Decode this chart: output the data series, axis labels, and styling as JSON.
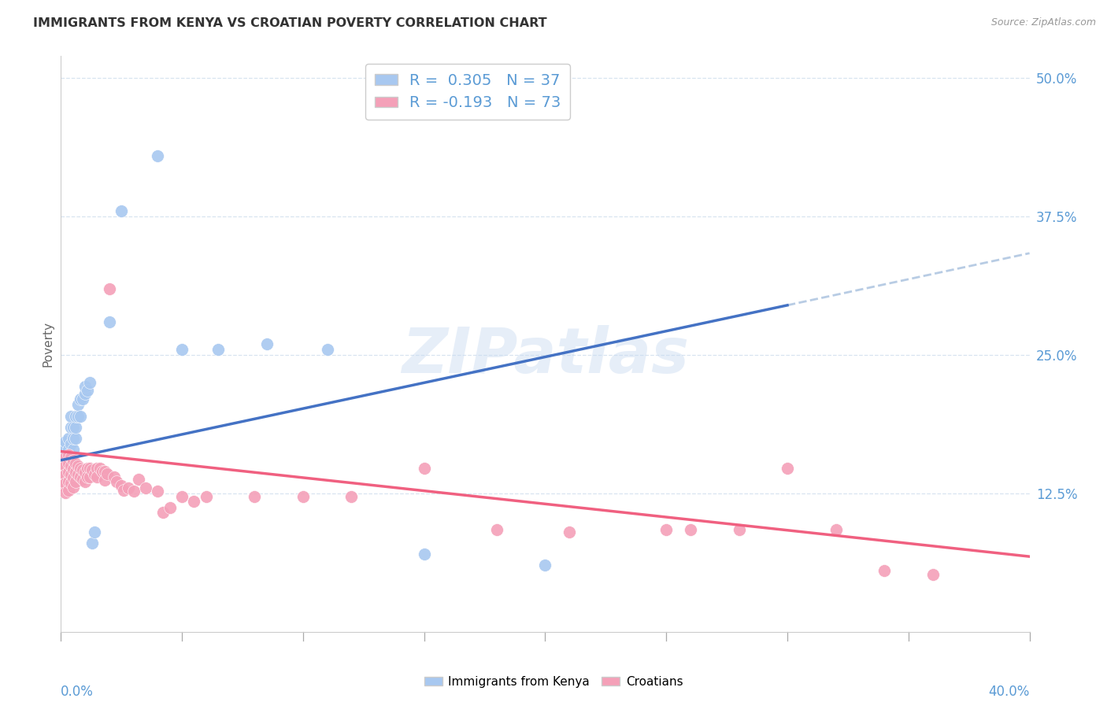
{
  "title": "IMMIGRANTS FROM KENYA VS CROATIAN POVERTY CORRELATION CHART",
  "source": "Source: ZipAtlas.com",
  "ylabel": "Poverty",
  "ytick_values": [
    0.125,
    0.25,
    0.375,
    0.5
  ],
  "xlim": [
    0.0,
    0.4
  ],
  "ylim": [
    0.0,
    0.52
  ],
  "kenya_R": 0.305,
  "kenya_N": 37,
  "croatian_R": -0.193,
  "croatian_N": 73,
  "watermark": "ZIPatlas",
  "background_color": "#ffffff",
  "grid_color": "#d8e4f0",
  "axis_color": "#5b9bd5",
  "kenya_color": "#a8c8f0",
  "croatian_color": "#f4a0b8",
  "trend_kenya_color": "#4472c4",
  "trend_croatian_color": "#f06080",
  "trend_dashed_color": "#b8cce4",
  "kenya_trend_x0": 0.0,
  "kenya_trend_y0": 0.155,
  "kenya_trend_x1": 0.3,
  "kenya_trend_y1": 0.295,
  "kenya_trend_dash_x0": 0.3,
  "kenya_trend_dash_y0": 0.295,
  "kenya_trend_dash_x1": 0.4,
  "kenya_trend_dash_y1": 0.342,
  "croatian_trend_x0": 0.0,
  "croatian_trend_y0": 0.163,
  "croatian_trend_x1": 0.4,
  "croatian_trend_y1": 0.068,
  "kenya_points": [
    [
      0.001,
      0.16
    ],
    [
      0.001,
      0.168
    ],
    [
      0.002,
      0.155
    ],
    [
      0.002,
      0.165
    ],
    [
      0.002,
      0.172
    ],
    [
      0.003,
      0.158
    ],
    [
      0.003,
      0.165
    ],
    [
      0.003,
      0.175
    ],
    [
      0.004,
      0.17
    ],
    [
      0.004,
      0.185
    ],
    [
      0.004,
      0.195
    ],
    [
      0.005,
      0.165
    ],
    [
      0.005,
      0.175
    ],
    [
      0.005,
      0.185
    ],
    [
      0.006,
      0.175
    ],
    [
      0.006,
      0.185
    ],
    [
      0.006,
      0.195
    ],
    [
      0.007,
      0.195
    ],
    [
      0.007,
      0.205
    ],
    [
      0.008,
      0.195
    ],
    [
      0.008,
      0.21
    ],
    [
      0.009,
      0.21
    ],
    [
      0.01,
      0.215
    ],
    [
      0.01,
      0.222
    ],
    [
      0.011,
      0.218
    ],
    [
      0.012,
      0.225
    ],
    [
      0.013,
      0.08
    ],
    [
      0.014,
      0.09
    ],
    [
      0.02,
      0.28
    ],
    [
      0.025,
      0.38
    ],
    [
      0.04,
      0.43
    ],
    [
      0.05,
      0.255
    ],
    [
      0.065,
      0.255
    ],
    [
      0.085,
      0.26
    ],
    [
      0.11,
      0.255
    ],
    [
      0.15,
      0.07
    ],
    [
      0.2,
      0.06
    ]
  ],
  "croatian_points": [
    [
      0.001,
      0.155
    ],
    [
      0.001,
      0.148
    ],
    [
      0.001,
      0.14
    ],
    [
      0.001,
      0.132
    ],
    [
      0.002,
      0.158
    ],
    [
      0.002,
      0.15
    ],
    [
      0.002,
      0.142
    ],
    [
      0.002,
      0.134
    ],
    [
      0.002,
      0.126
    ],
    [
      0.003,
      0.16
    ],
    [
      0.003,
      0.152
    ],
    [
      0.003,
      0.144
    ],
    [
      0.003,
      0.136
    ],
    [
      0.003,
      0.128
    ],
    [
      0.004,
      0.158
    ],
    [
      0.004,
      0.15
    ],
    [
      0.004,
      0.142
    ],
    [
      0.004,
      0.134
    ],
    [
      0.005,
      0.155
    ],
    [
      0.005,
      0.147
    ],
    [
      0.005,
      0.139
    ],
    [
      0.005,
      0.131
    ],
    [
      0.006,
      0.152
    ],
    [
      0.006,
      0.144
    ],
    [
      0.006,
      0.136
    ],
    [
      0.007,
      0.15
    ],
    [
      0.007,
      0.142
    ],
    [
      0.008,
      0.148
    ],
    [
      0.008,
      0.14
    ],
    [
      0.009,
      0.146
    ],
    [
      0.009,
      0.138
    ],
    [
      0.01,
      0.144
    ],
    [
      0.01,
      0.136
    ],
    [
      0.011,
      0.148
    ],
    [
      0.011,
      0.14
    ],
    [
      0.012,
      0.148
    ],
    [
      0.012,
      0.14
    ],
    [
      0.013,
      0.146
    ],
    [
      0.014,
      0.142
    ],
    [
      0.015,
      0.148
    ],
    [
      0.015,
      0.14
    ],
    [
      0.016,
      0.148
    ],
    [
      0.017,
      0.145
    ],
    [
      0.018,
      0.145
    ],
    [
      0.018,
      0.137
    ],
    [
      0.019,
      0.143
    ],
    [
      0.02,
      0.31
    ],
    [
      0.022,
      0.14
    ],
    [
      0.023,
      0.136
    ],
    [
      0.025,
      0.132
    ],
    [
      0.026,
      0.128
    ],
    [
      0.028,
      0.13
    ],
    [
      0.03,
      0.127
    ],
    [
      0.032,
      0.138
    ],
    [
      0.035,
      0.13
    ],
    [
      0.04,
      0.127
    ],
    [
      0.042,
      0.108
    ],
    [
      0.045,
      0.112
    ],
    [
      0.05,
      0.122
    ],
    [
      0.055,
      0.118
    ],
    [
      0.06,
      0.122
    ],
    [
      0.08,
      0.122
    ],
    [
      0.1,
      0.122
    ],
    [
      0.12,
      0.122
    ],
    [
      0.15,
      0.148
    ],
    [
      0.18,
      0.092
    ],
    [
      0.21,
      0.09
    ],
    [
      0.25,
      0.092
    ],
    [
      0.26,
      0.092
    ],
    [
      0.28,
      0.092
    ],
    [
      0.3,
      0.148
    ],
    [
      0.32,
      0.092
    ],
    [
      0.34,
      0.055
    ],
    [
      0.36,
      0.052
    ]
  ]
}
